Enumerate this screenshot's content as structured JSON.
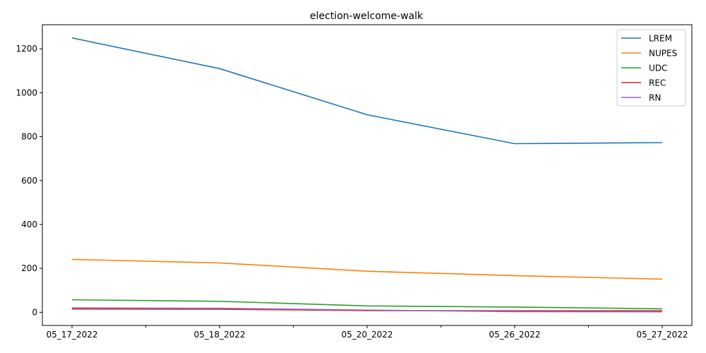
{
  "chart_data": {
    "type": "line",
    "title": "election-welcome-walk",
    "xlabel": "",
    "ylabel": "",
    "categories": [
      "05_17_2022",
      "05_18_2022",
      "05_20_2022",
      "05_26_2022",
      "05_27_2022"
    ],
    "ylim": [
      -60,
      1310
    ],
    "yticks": [
      0,
      200,
      400,
      600,
      800,
      1000,
      1200
    ],
    "grid": false,
    "legend_position": "top-right",
    "series": [
      {
        "name": "LREM",
        "color": "#1f77b4",
        "values": [
          1250,
          1110,
          900,
          768,
          773
        ]
      },
      {
        "name": "NUPES",
        "color": "#ff7f0e",
        "values": [
          241,
          225,
          187,
          167,
          151
        ]
      },
      {
        "name": "UDC",
        "color": "#2ca02c",
        "values": [
          57,
          50,
          29,
          24,
          16
        ]
      },
      {
        "name": "REC",
        "color": "#d62728",
        "values": [
          15,
          14,
          8,
          7,
          7
        ]
      },
      {
        "name": "RN",
        "color": "#9467bd",
        "values": [
          20,
          18,
          10,
          3,
          2
        ]
      }
    ]
  }
}
